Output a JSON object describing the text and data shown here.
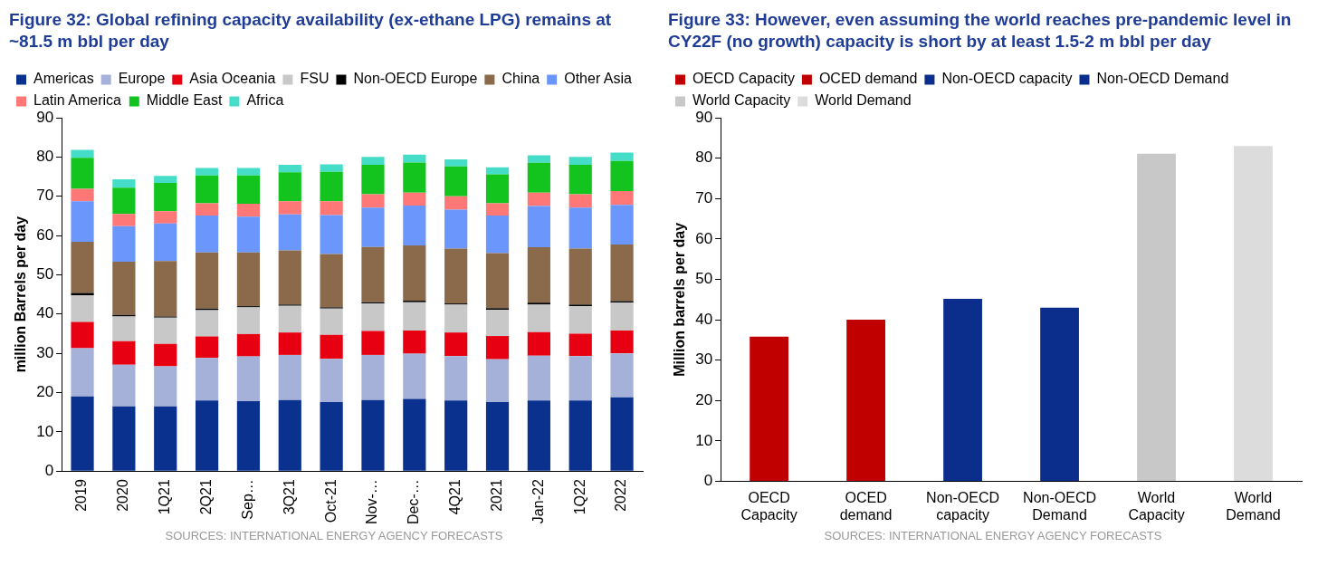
{
  "chart_data": [
    {
      "type": "bar",
      "title": "Figure 32: Global refining capacity availability (ex-ethane LPG) remains at ~81.5 m bbl per day",
      "ylabel": "million Barrels per day",
      "categories": [
        "2019",
        "2020",
        "1Q21",
        "2Q21",
        "Sep…",
        "3Q21",
        "Oct-21",
        "Nov-…",
        "Dec-…",
        "4Q21",
        "2021",
        "Jan-22",
        "1Q22",
        "2022"
      ],
      "stacked": true,
      "ylim": [
        0,
        90
      ],
      "yticks": [
        0,
        10,
        20,
        30,
        40,
        50,
        60,
        70,
        80,
        90
      ],
      "legend": "top",
      "annotations": [
        "SOURCES: INTERNATIONAL ENERGY AGENCY FORECASTS"
      ],
      "series": [
        {
          "name": "Americas",
          "color": "#0b318f",
          "values": [
            19.0,
            16.5,
            16.5,
            18.0,
            17.8,
            18.1,
            17.6,
            18.1,
            18.4,
            18.0,
            17.6,
            18.0,
            18.0,
            18.8
          ]
        },
        {
          "name": "Europe",
          "color": "#a5b1d8",
          "values": [
            12.3,
            10.6,
            10.2,
            10.8,
            11.4,
            11.5,
            11.0,
            11.5,
            11.5,
            11.3,
            10.9,
            11.4,
            11.3,
            11.2
          ]
        },
        {
          "name": "Asia Oceania",
          "color": "#e60012",
          "values": [
            6.7,
            6.0,
            5.7,
            5.5,
            5.7,
            5.7,
            6.1,
            6.1,
            5.9,
            6.0,
            5.9,
            6.0,
            5.7,
            5.8
          ]
        },
        {
          "name": "FSU",
          "color": "#c8c8c8",
          "values": [
            6.8,
            6.3,
            6.7,
            6.7,
            6.8,
            6.8,
            6.7,
            7.0,
            7.2,
            7.1,
            6.7,
            7.0,
            7.0,
            7.1
          ]
        },
        {
          "name": "Non-OECD Europe",
          "color": "#000000",
          "values": [
            0.6,
            0.4,
            0.3,
            0.4,
            0.3,
            0.3,
            0.3,
            0.3,
            0.4,
            0.3,
            0.4,
            0.5,
            0.4,
            0.4
          ]
        },
        {
          "name": "China",
          "color": "#8a6a4a",
          "values": [
            13.0,
            13.5,
            14.1,
            14.3,
            13.7,
            13.8,
            13.6,
            14.1,
            14.1,
            14.0,
            14.0,
            14.1,
            14.3,
            14.4
          ]
        },
        {
          "name": "Other Asia",
          "color": "#6b96fb",
          "values": [
            10.3,
            9.1,
            9.6,
            9.4,
            9.1,
            9.2,
            9.9,
            10.0,
            10.1,
            9.9,
            9.6,
            10.5,
            10.4,
            10.1
          ]
        },
        {
          "name": "Latin America",
          "color": "#ff7777",
          "values": [
            3.2,
            3.1,
            3.1,
            3.1,
            3.3,
            3.3,
            3.5,
            3.4,
            3.3,
            3.4,
            3.1,
            3.4,
            3.4,
            3.5
          ]
        },
        {
          "name": "Middle East",
          "color": "#13c41f",
          "values": [
            7.9,
            6.7,
            7.2,
            7.1,
            7.2,
            7.4,
            7.5,
            7.5,
            7.7,
            7.6,
            7.4,
            7.6,
            7.5,
            7.7
          ]
        },
        {
          "name": "Africa",
          "color": "#45ddc8",
          "values": [
            2.0,
            2.1,
            1.8,
            1.9,
            1.9,
            1.9,
            1.9,
            2.0,
            2.0,
            1.8,
            1.8,
            1.9,
            2.0,
            2.1
          ]
        }
      ]
    },
    {
      "type": "bar",
      "title": "Figure 33: However, even assuming the world reaches pre-pandemic level in CY22F (no growth) capacity is short by at least 1.5-2 m bbl per day",
      "ylabel": "Million barrels per day",
      "categories": [
        "OECD Capacity",
        "OCED demand",
        "Non-OECD capacity",
        "Non-OECD Demand",
        "World Capacity",
        "World Demand"
      ],
      "series": [
        {
          "name": "OECD Capacity",
          "color": "#c00000",
          "values": [
            35.8,
            null,
            null,
            null,
            null,
            null
          ]
        },
        {
          "name": "OCED demand",
          "color": "#c00000",
          "values": [
            null,
            40.0,
            null,
            null,
            null,
            null
          ]
        },
        {
          "name": "Non-OECD capacity",
          "color": "#0b2d8c",
          "values": [
            null,
            null,
            45.2,
            null,
            null,
            null
          ]
        },
        {
          "name": "Non-OECD Demand",
          "color": "#0b2d8c",
          "values": [
            null,
            null,
            null,
            43.0,
            null,
            null
          ]
        },
        {
          "name": "World Capacity",
          "color": "#c8c8c8",
          "values": [
            null,
            null,
            null,
            null,
            81.1,
            null
          ]
        },
        {
          "name": "World Demand",
          "color": "#dcdcdc",
          "values": [
            null,
            null,
            null,
            null,
            null,
            83.0
          ]
        }
      ],
      "ylim": [
        0,
        90
      ],
      "yticks": [
        0,
        10,
        20,
        30,
        40,
        50,
        60,
        70,
        80,
        90
      ],
      "legend": "top",
      "annotations": [
        "SOURCES: INTERNATIONAL ENERGY AGENCY FORECASTS"
      ]
    }
  ]
}
